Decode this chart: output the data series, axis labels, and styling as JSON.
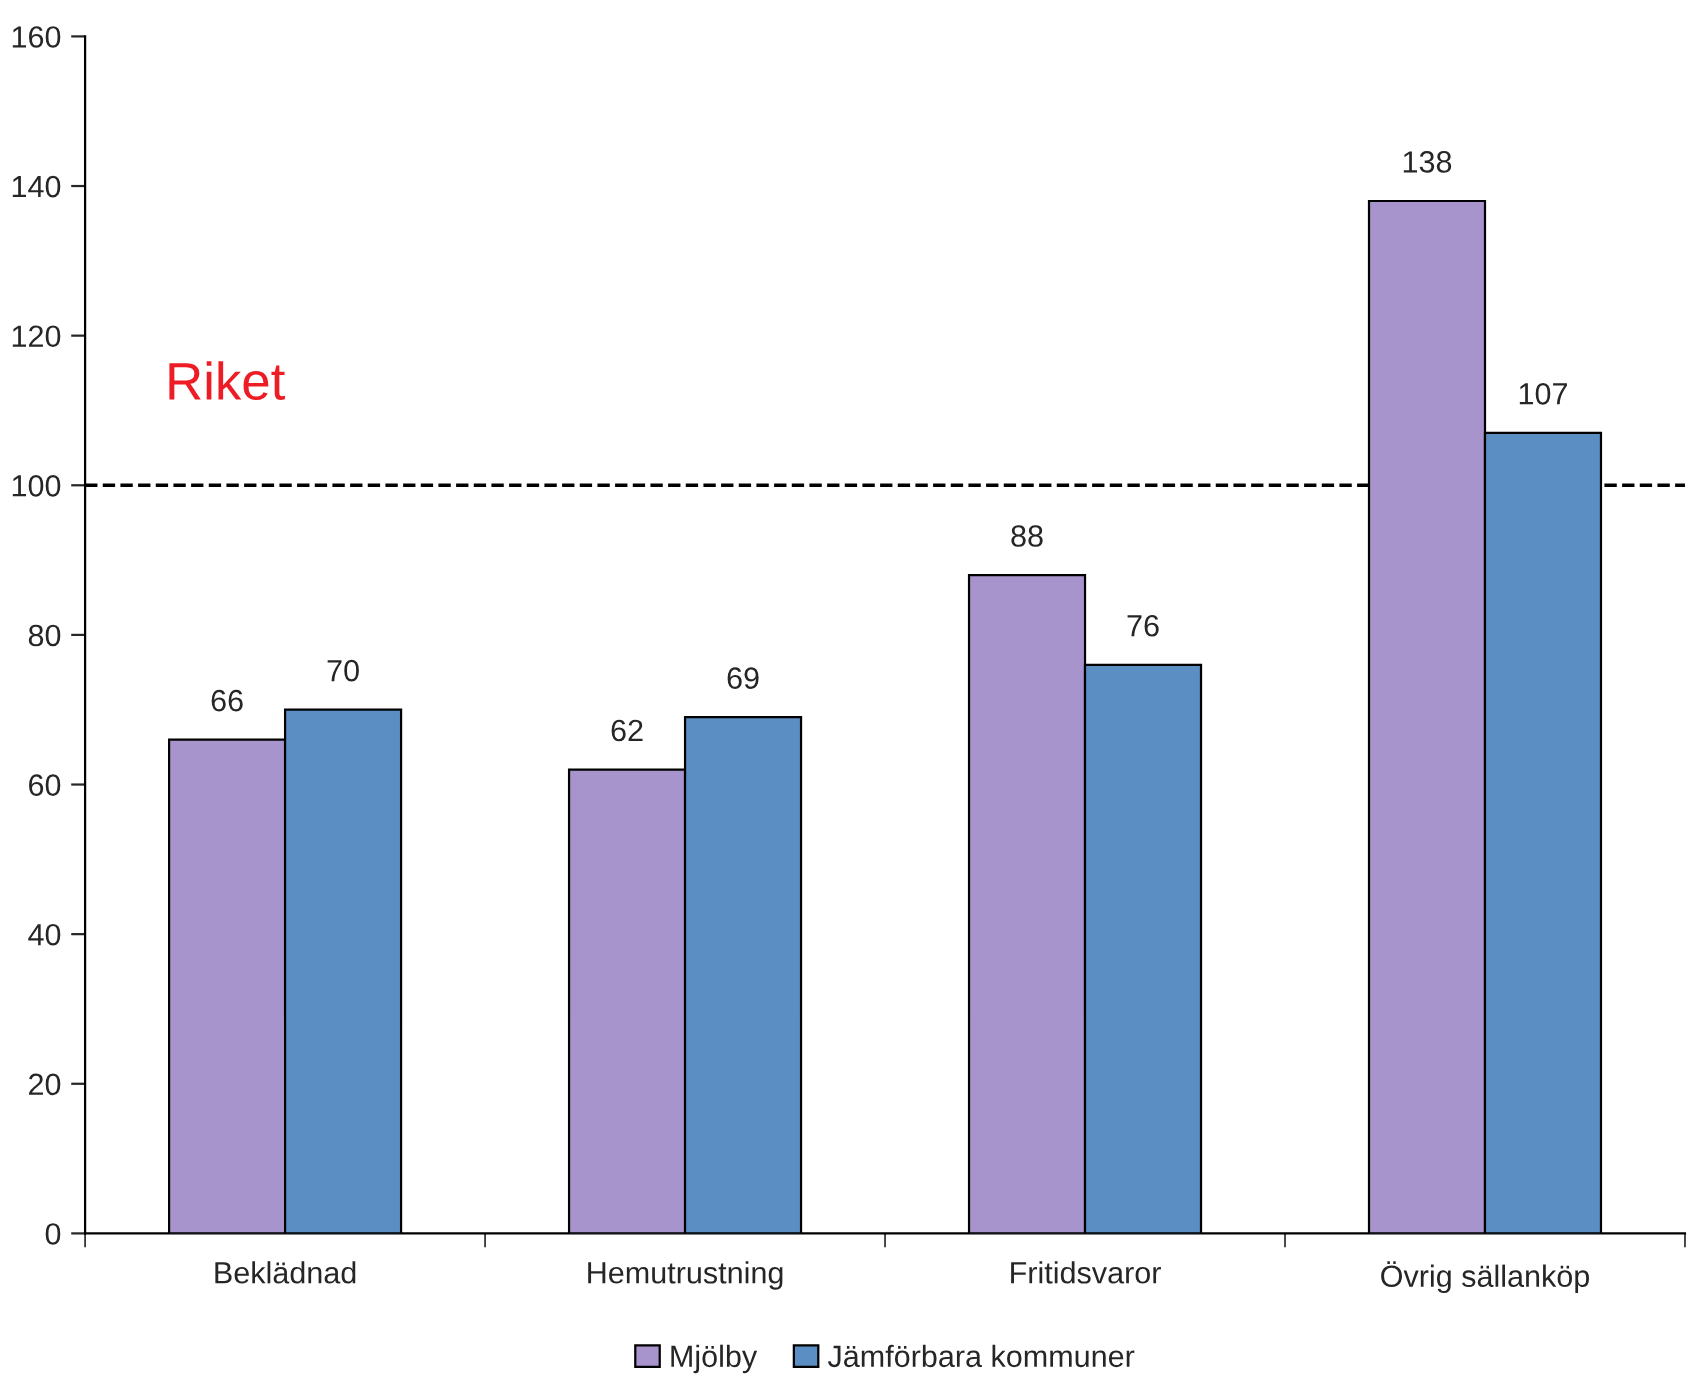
{
  "chart_data": {
    "type": "bar",
    "categories": [
      "Beklädnad",
      "Hemutrustning",
      "Fritidsvaror",
      "Övrig sällanköp"
    ],
    "series": [
      {
        "name": "Mjölby",
        "color": "#a894cc",
        "values": [
          66,
          62,
          88,
          138
        ]
      },
      {
        "name": "Jämförbara kommuner",
        "color": "#5b8ec2",
        "values": [
          70,
          69,
          76,
          107
        ]
      }
    ],
    "ylim": [
      0,
      160
    ],
    "yticks": [
      0,
      20,
      40,
      60,
      80,
      100,
      120,
      140,
      160
    ],
    "ref_lines": [
      {
        "axis": "y",
        "value": 100,
        "label": "Riket",
        "color": "#000000",
        "line_style": "dashed"
      }
    ],
    "data_labels": true,
    "legend": "bottom",
    "grid": false
  }
}
